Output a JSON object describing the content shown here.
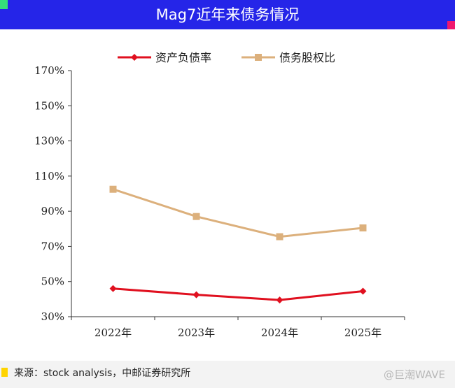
{
  "header": {
    "title": "Mag7近年来债务情况",
    "accent_color": "#2525e8"
  },
  "chart_data": {
    "type": "line",
    "title": "",
    "xlabel": "",
    "ylabel": "",
    "categories": [
      "2022年",
      "2023年",
      "2024年",
      "2025年"
    ],
    "ylim": [
      30,
      170
    ],
    "yticks": [
      "30%",
      "50%",
      "70%",
      "90%",
      "110%",
      "130%",
      "150%",
      "170%"
    ],
    "ytick_values": [
      30,
      50,
      70,
      90,
      110,
      130,
      150,
      170
    ],
    "unit": "%",
    "grid": false,
    "legend_position": "top-center",
    "series": [
      {
        "name": "资产负债率",
        "values": [
          46,
          42.5,
          39.5,
          44.5
        ],
        "color": "#e0101f",
        "marker": "diamond"
      },
      {
        "name": "债务股权比",
        "values": [
          102.5,
          87,
          75.5,
          80.5
        ],
        "color": "#dcb07c",
        "marker": "square"
      }
    ]
  },
  "footer": {
    "source": "来源：stock analysis，中邮证券研究所",
    "watermark": "@巨潮WAVE"
  }
}
